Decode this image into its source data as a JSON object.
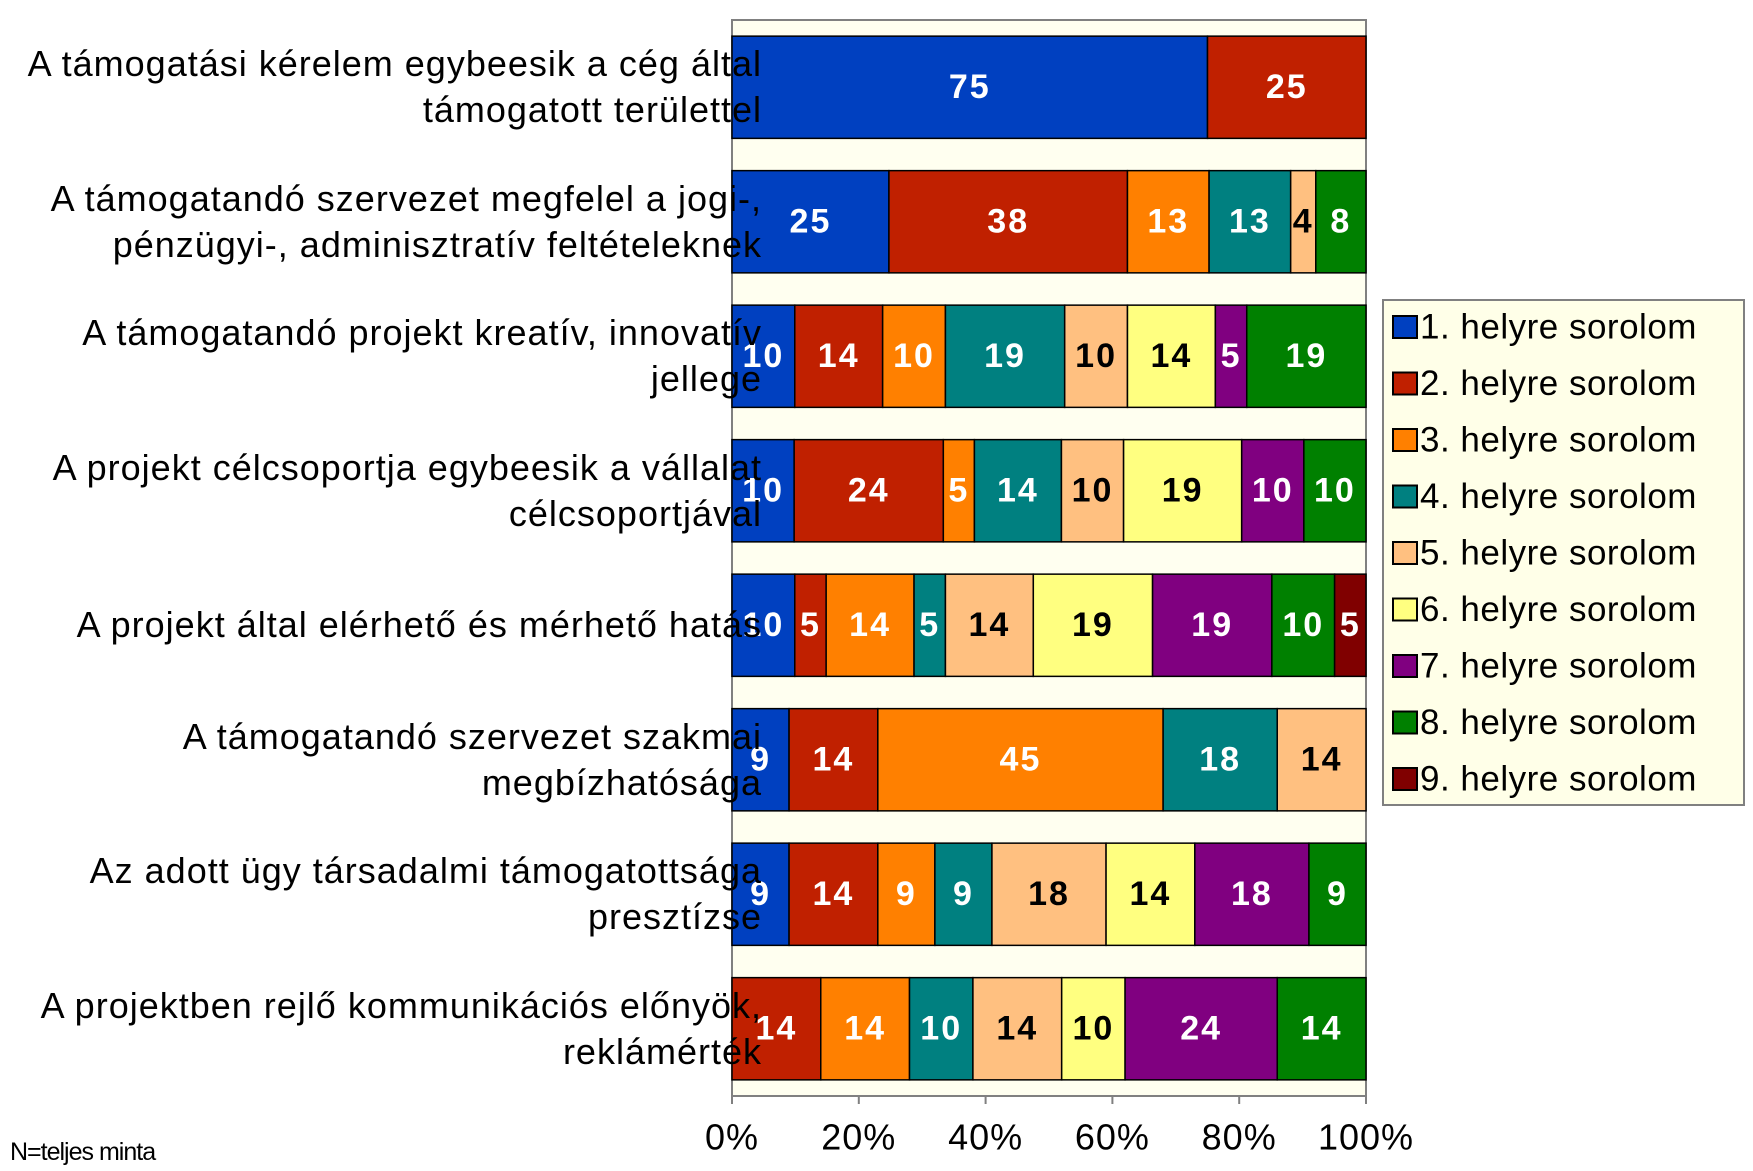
{
  "chart_data": {
    "type": "bar",
    "orientation": "horizontal",
    "stacked": "percent",
    "categories": [
      "A támogatási kérelem egybeesik a cég által támogatott területtel",
      "A támogatandó szervezet megfelel a jogi-, pénzügyi-, adminisztratív feltételeknek",
      "A támogatandó projekt kreatív, innovatív jellege",
      "A projekt célcsoportja egybeesik a vállalat célcsoportjával",
      "A projekt által elérhető és mérhető hatás",
      "A támogatandó szervezet szakmai megbízhatósága",
      "Az adott ügy társadalmi támogatottsága presztízse",
      "A projektben rejlő kommunikációs előnyök, reklámérték"
    ],
    "series": [
      {
        "name": "1. helyre sorolom",
        "color": "#0040c0",
        "label_color": "#ffffff",
        "values": [
          75,
          25,
          10,
          10,
          10,
          9,
          9,
          null
        ]
      },
      {
        "name": "2. helyre sorolom",
        "color": "#c02000",
        "label_color": "#ffffff",
        "values": [
          25,
          38,
          14,
          24,
          5,
          14,
          14,
          14
        ]
      },
      {
        "name": "3. helyre sorolom",
        "color": "#ff8000",
        "label_color": "#ffffff",
        "values": [
          null,
          13,
          10,
          5,
          14,
          45,
          9,
          14
        ]
      },
      {
        "name": "4. helyre sorolom",
        "color": "#008080",
        "label_color": "#ffffff",
        "values": [
          null,
          13,
          19,
          14,
          5,
          18,
          9,
          10
        ]
      },
      {
        "name": "5. helyre sorolom",
        "color": "#ffc080",
        "label_color": "#000000",
        "values": [
          null,
          4,
          10,
          10,
          14,
          14,
          18,
          14
        ]
      },
      {
        "name": "6. helyre sorolom",
        "color": "#ffff80",
        "label_color": "#000000",
        "values": [
          null,
          null,
          14,
          19,
          19,
          null,
          14,
          10
        ]
      },
      {
        "name": "7. helyre sorolom",
        "color": "#800080",
        "label_color": "#ffffff",
        "values": [
          null,
          null,
          5,
          10,
          19,
          null,
          18,
          24
        ]
      },
      {
        "name": "8. helyre sorolom",
        "color": "#008000",
        "label_color": "#ffffff",
        "values": [
          null,
          8,
          19,
          10,
          10,
          null,
          9,
          14
        ]
      },
      {
        "name": "9. helyre sorolom",
        "color": "#800000",
        "label_color": "#ffffff",
        "values": [
          null,
          null,
          null,
          null,
          5,
          null,
          null,
          null
        ]
      }
    ],
    "xlim": [
      0,
      100
    ],
    "xticks": [
      {
        "value": 0,
        "label": "0%"
      },
      {
        "value": 20,
        "label": "20%"
      },
      {
        "value": 40,
        "label": "40%"
      },
      {
        "value": 60,
        "label": "60%"
      },
      {
        "value": 80,
        "label": "80%"
      },
      {
        "value": 100,
        "label": "100%"
      }
    ],
    "legend": "right",
    "note": "N=teljes minta"
  }
}
